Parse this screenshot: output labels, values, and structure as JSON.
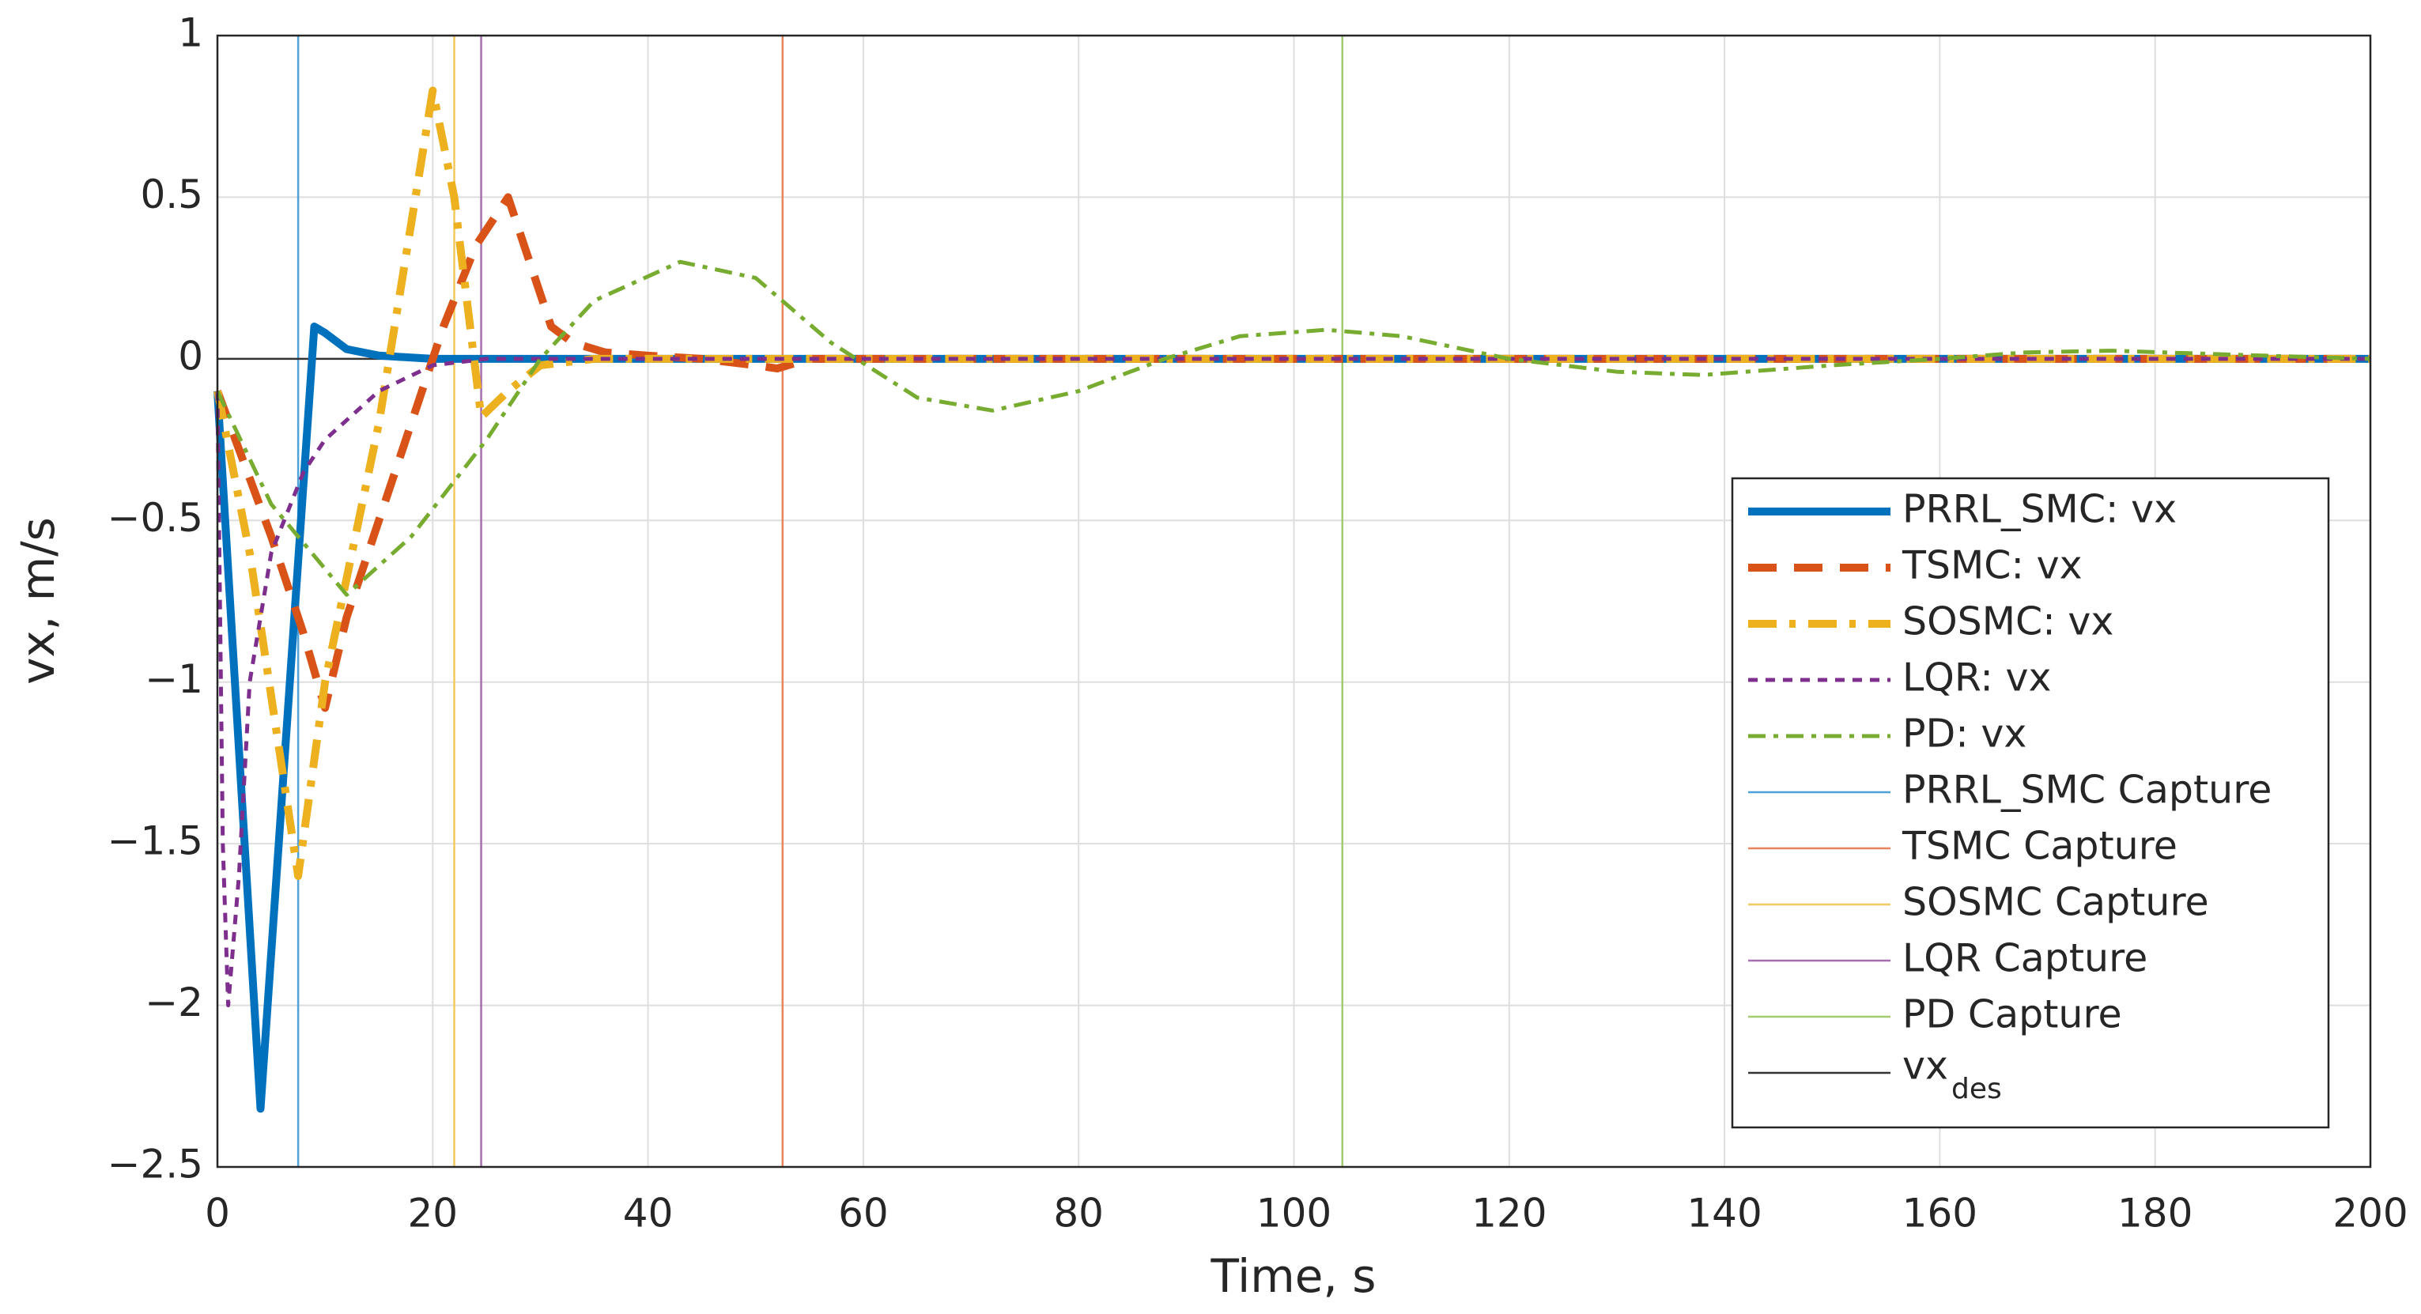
{
  "chart_data": {
    "type": "line",
    "xlabel": "Time, s",
    "ylabel": "vx, m/s",
    "xlim": [
      0,
      200
    ],
    "ylim": [
      -2.5,
      1
    ],
    "xticks": [
      0,
      20,
      40,
      60,
      80,
      100,
      120,
      140,
      160,
      180,
      200
    ],
    "yticks": [
      {
        "value": -2.5,
        "label": "−2.5"
      },
      {
        "value": -2,
        "label": "−2"
      },
      {
        "value": -1.5,
        "label": "−1.5"
      },
      {
        "value": -1,
        "label": "−1"
      },
      {
        "value": -0.5,
        "label": "−0.5"
      },
      0,
      0.5,
      1
    ],
    "grid": true,
    "legend": "east",
    "series": [
      {
        "name": "PRRL_SMC: vx",
        "color": "#0072BD",
        "style": "solid-thick",
        "x": [
          0,
          4,
          9,
          10,
          12,
          15,
          20,
          200
        ],
        "values": [
          -0.1,
          -2.32,
          0.1,
          0.08,
          0.03,
          0.01,
          0,
          0
        ]
      },
      {
        "name": "TSMC: vx",
        "color": "#D95319",
        "style": "dashed-thick",
        "x": [
          0,
          5,
          8,
          10,
          12,
          15,
          18,
          21,
          24,
          27,
          29,
          31,
          33,
          36,
          40,
          45,
          50,
          52,
          55,
          200
        ],
        "values": [
          -0.1,
          -0.55,
          -0.85,
          -1.08,
          -0.8,
          -0.5,
          -0.2,
          0.1,
          0.35,
          0.5,
          0.3,
          0.1,
          0.05,
          0.02,
          0.01,
          0,
          -0.02,
          -0.03,
          0,
          0
        ]
      },
      {
        "name": "SOSMC: vx",
        "color": "#EDB120",
        "style": "dashdot-thick",
        "x": [
          0,
          3,
          7.5,
          10,
          15,
          20,
          22,
          24.5,
          27,
          30,
          35,
          200
        ],
        "values": [
          -0.1,
          -0.6,
          -1.6,
          -1.0,
          -0.2,
          0.83,
          0.5,
          -0.18,
          -0.1,
          -0.02,
          0,
          0
        ]
      },
      {
        "name": "LQR: vx",
        "color": "#7E2F8E",
        "style": "dotted",
        "x": [
          0,
          0.5,
          1,
          2,
          3,
          5,
          8,
          10,
          15,
          20,
          25,
          200
        ],
        "values": [
          -0.1,
          -1.5,
          -2.0,
          -1.6,
          -1.0,
          -0.6,
          -0.35,
          -0.25,
          -0.1,
          -0.02,
          0,
          0
        ]
      },
      {
        "name": "PD: vx",
        "color": "#77AC30",
        "style": "dashdot",
        "x": [
          0,
          5,
          12,
          18,
          25,
          30,
          35,
          43,
          50,
          57,
          65,
          72,
          80,
          88,
          95,
          103,
          110,
          120,
          130,
          138,
          150,
          160,
          168,
          176,
          190,
          200
        ],
        "values": [
          -0.1,
          -0.45,
          -0.73,
          -0.55,
          -0.25,
          0,
          0.18,
          0.3,
          0.25,
          0.05,
          -0.12,
          -0.16,
          -0.1,
          0,
          0.07,
          0.09,
          0.07,
          0,
          -0.04,
          -0.05,
          -0.02,
          0,
          0.02,
          0.025,
          0.01,
          0
        ]
      }
    ],
    "captures": [
      {
        "name": "PRRL_SMC Capture",
        "color": "#4DA3D9",
        "x": 7.5
      },
      {
        "name": "TSMC Capture",
        "color": "#E8835A",
        "x": 52.5
      },
      {
        "name": "SOSMC Capture",
        "color": "#F2CA60",
        "x": 22
      },
      {
        "name": "LQR Capture",
        "color": "#A66DB0",
        "x": 24.5
      },
      {
        "name": "PD Capture",
        "color": "#A1CC70",
        "x": 104.5
      }
    ],
    "reference": {
      "name": "vx",
      "subscript": "des",
      "color": "#333333",
      "value": 0
    }
  }
}
